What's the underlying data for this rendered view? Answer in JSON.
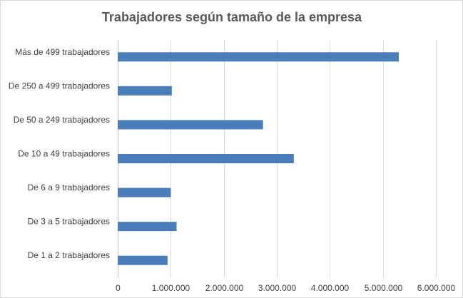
{
  "chart_data": {
    "type": "bar",
    "orientation": "horizontal",
    "title": "Trabajadores según tamaño de la empresa",
    "categories": [
      "Más de 499 trabajadores",
      "De 250 a 499 trabajadores",
      "De  50 a 249 trabajadores",
      "De 10 a 49 trabajadores",
      "De 6 a 9 trabajadores",
      "De 3 a 5 trabajadores",
      "De 1 a 2 trabajadores"
    ],
    "values": [
      5300000,
      1020000,
      2740000,
      3320000,
      1000000,
      1110000,
      940000
    ],
    "xlim": [
      0,
      6000000
    ],
    "xticks": [
      0,
      1000000,
      2000000,
      3000000,
      4000000,
      5000000,
      6000000
    ],
    "xtick_labels": [
      "0",
      "1.000.000",
      "2.000.000",
      "3.000.000",
      "4.000.000",
      "5.000.000",
      "6.000.000"
    ],
    "grid": true,
    "legend": "none",
    "bar_color": "#4a7ebb"
  }
}
